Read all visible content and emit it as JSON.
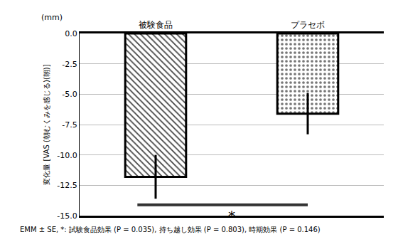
{
  "chart_data": {
    "type": "bar",
    "unit_label": "(mm)",
    "y_label": "変化量 [VAS (朝むくみを感じる)(朝)]",
    "categories": [
      "被験食品",
      "プラセボ"
    ],
    "values": [
      -11.8,
      -6.6
    ],
    "errors": [
      1.8,
      1.7
    ],
    "colors": [
      "#444444",
      "#777777"
    ],
    "ylim": [
      -15,
      0
    ],
    "yticks": [
      {
        "value": 0,
        "label": "0.0"
      },
      -2.5,
      {
        "value": -5,
        "label": "-5.0"
      },
      -7.5,
      {
        "value": -10,
        "label": "-10.0"
      },
      -12.5,
      {
        "value": -15,
        "label": "-15.0"
      }
    ],
    "grid": true,
    "significance": {
      "between": [
        "被験食品",
        "プラセボ"
      ],
      "y": -14.1,
      "label": "*"
    },
    "footnote": "EMM ± SE, *: 試験食品効果 (P = 0.035), 持ち越し効果 (P = 0.803), 時期効果 (P = 0.146)"
  }
}
